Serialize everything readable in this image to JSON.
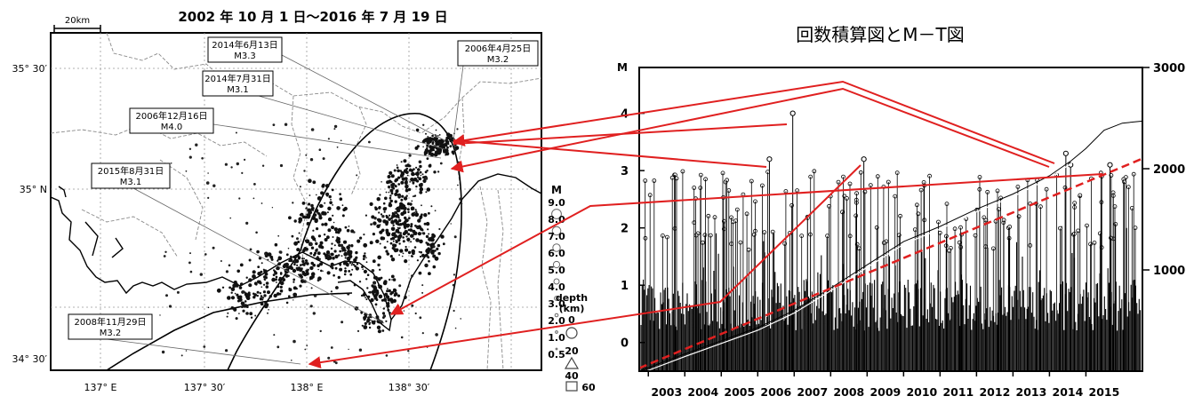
{
  "map": {
    "period_title": "2002 年 10 月 1 日～2016 年 7 月 19 日",
    "scale_label": "20km",
    "lat_labels": [
      "35° 30′",
      "35° N",
      "34° 30′"
    ],
    "lon_labels": [
      "137° E",
      "137° 30′",
      "138° E",
      "138° 30′"
    ],
    "callouts": [
      {
        "date": "2014年6月13日",
        "mag": "M3.3"
      },
      {
        "date": "2014年7月31日",
        "mag": "M3.1"
      },
      {
        "date": "2006年4月25日",
        "mag": "M3.2"
      },
      {
        "date": "2006年12月16日",
        "mag": "M4.0"
      },
      {
        "date": "2015年8月31日",
        "mag": "M3.1"
      },
      {
        "date": "2008年11月29日",
        "mag": "M3.2"
      }
    ],
    "legend": {
      "mag_title": "M",
      "mag_values": [
        "9.0",
        "8.0",
        "7.0",
        "6.0",
        "5.0",
        "4.0",
        "3.0",
        "2.0",
        "1.0",
        "0.5"
      ],
      "depth_title": "depth",
      "depth_unit": "(km)",
      "depth_values": [
        "0",
        "20",
        "40",
        "60"
      ]
    }
  },
  "chart_title": "回数積算図とM－T図",
  "chart_data": {
    "type": "line",
    "left_axis_label": "M",
    "left_ticks": [
      "0",
      "1",
      "2",
      "3",
      "4"
    ],
    "left_ylim": [
      -0.5,
      4.8
    ],
    "right_ticks": [
      "1000",
      "2000",
      "3000"
    ],
    "right_ylim": [
      0,
      3000
    ],
    "x_labels": [
      "2003",
      "2004",
      "2005",
      "2006",
      "2007",
      "2008",
      "2009",
      "2010",
      "2011",
      "2012",
      "2013",
      "2014",
      "2015"
    ],
    "xlim": [
      2002.75,
      2016.55
    ],
    "events": [
      {
        "date": "2006年12月16日",
        "t": 2006.96,
        "mag": 4.0
      },
      {
        "date": "2014年6月13日",
        "t": 2014.45,
        "mag": 3.3
      },
      {
        "date": "2014年7月31日",
        "t": 2014.58,
        "mag": 3.1
      },
      {
        "date": "2006年4月25日",
        "t": 2006.32,
        "mag": 3.2
      },
      {
        "date": "2015年8月31日",
        "t": 2015.66,
        "mag": 3.1
      },
      {
        "date": "2008年11月29日",
        "t": 2008.91,
        "mag": 3.2
      }
    ],
    "cumulative": {
      "t": [
        2002.75,
        2004.0,
        2005.0,
        2006.0,
        2007.0,
        2008.0,
        2009.0,
        2010.0,
        2011.0,
        2012.0,
        2013.0,
        2014.0,
        2014.6,
        2015.0,
        2015.5,
        2016.0,
        2016.55
      ],
      "n": [
        0,
        170,
        300,
        430,
        600,
        820,
        1050,
        1280,
        1430,
        1600,
        1750,
        1930,
        2080,
        2200,
        2380,
        2450,
        2470
      ]
    },
    "trend_line": {
      "t": [
        2002.75,
        2016.55
      ],
      "n": [
        30,
        2100
      ]
    }
  },
  "colors": {
    "arrow": "#e02020",
    "ink": "#000000",
    "grid": "#888888"
  }
}
